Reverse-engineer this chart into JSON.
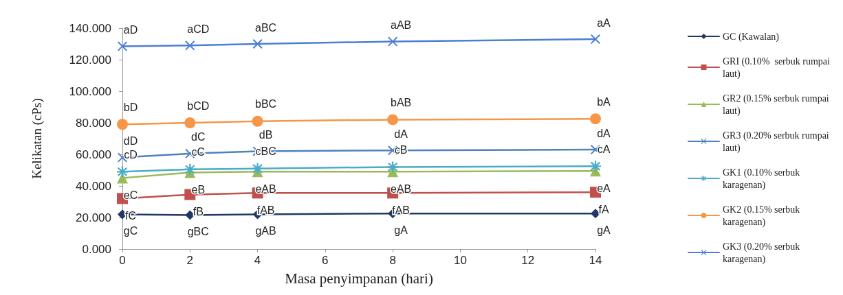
{
  "chart_data": {
    "type": "line",
    "xlabel": "Masa penyimpanan (hari)",
    "ylabel": "Kelikatan (cPs)",
    "x": [
      0,
      2,
      4,
      8,
      14
    ],
    "xlim": [
      0,
      14
    ],
    "xticks": [
      0,
      2,
      4,
      6,
      8,
      10,
      12,
      14
    ],
    "ylim": [
      0,
      140
    ],
    "yticks": [
      {
        "value": 0,
        "label": "0.000"
      },
      {
        "value": 20,
        "label": "20.000"
      },
      {
        "value": 40,
        "label": "40.000"
      },
      {
        "value": 60,
        "label": "60.000"
      },
      {
        "value": 80,
        "label": "80.000"
      },
      {
        "value": 100,
        "label": "100.000"
      },
      {
        "value": 120,
        "label": "120.000"
      },
      {
        "value": 140,
        "label": "140.000"
      }
    ],
    "grid": false,
    "legend": "right",
    "series": [
      {
        "name": "GC (Kawalan)",
        "color": "#1f3864",
        "marker": "diamond",
        "values": [
          22,
          21.5,
          22,
          22.5,
          22.5
        ],
        "value_labels": [
          "gC",
          "gBC",
          "gAB",
          "gA",
          "gA"
        ]
      },
      {
        "name": "GRI (0.10%  serbuk rumpai laut)",
        "color": "#c0504d",
        "marker": "square",
        "values": [
          32,
          34.5,
          35.5,
          35.5,
          36
        ],
        "value_labels": [
          "fC",
          "fB",
          "fAB",
          "fAB",
          "fA"
        ]
      },
      {
        "name": "GR2 (0.15% serbuk rumpai laut)",
        "color": "#9bbb59",
        "marker": "triangle",
        "values": [
          45,
          48.5,
          49,
          49,
          49.5
        ],
        "value_labels": [
          "eC",
          "eB",
          "eAB",
          "eAB",
          "eA"
        ]
      },
      {
        "name": "GR3 (0.20% serbuk rumpai laut)",
        "color": "#4f81bd",
        "marker": "cross",
        "values": [
          58,
          60.5,
          62,
          62.5,
          63
        ],
        "value_labels": [
          "dD",
          "dC",
          "dB",
          "dA",
          "dA"
        ]
      },
      {
        "name": "GK1 (0.10% serbuk karagenan)",
        "color": "#4bacc6",
        "marker": "star",
        "values": [
          49,
          50.5,
          51,
          52,
          52.5
        ],
        "value_labels": [
          "cD",
          "cC",
          "cBC",
          "cB",
          "cA"
        ]
      },
      {
        "name": "GK2 (0.15% serbuk karagenan)",
        "color": "#f79646",
        "marker": "circle",
        "values": [
          79,
          80,
          81,
          82,
          82.5
        ],
        "value_labels": [
          "bD",
          "bCD",
          "bBC",
          "bAB",
          "bA"
        ]
      },
      {
        "name": "GK3 (0.20% serbuk karagenan)",
        "color": "#4a7fd4",
        "marker": "cross",
        "values": [
          128.5,
          129,
          130,
          131.5,
          133
        ],
        "value_labels": [
          "aD",
          "aCD",
          "aBC",
          "aAB",
          "aA"
        ]
      }
    ]
  }
}
